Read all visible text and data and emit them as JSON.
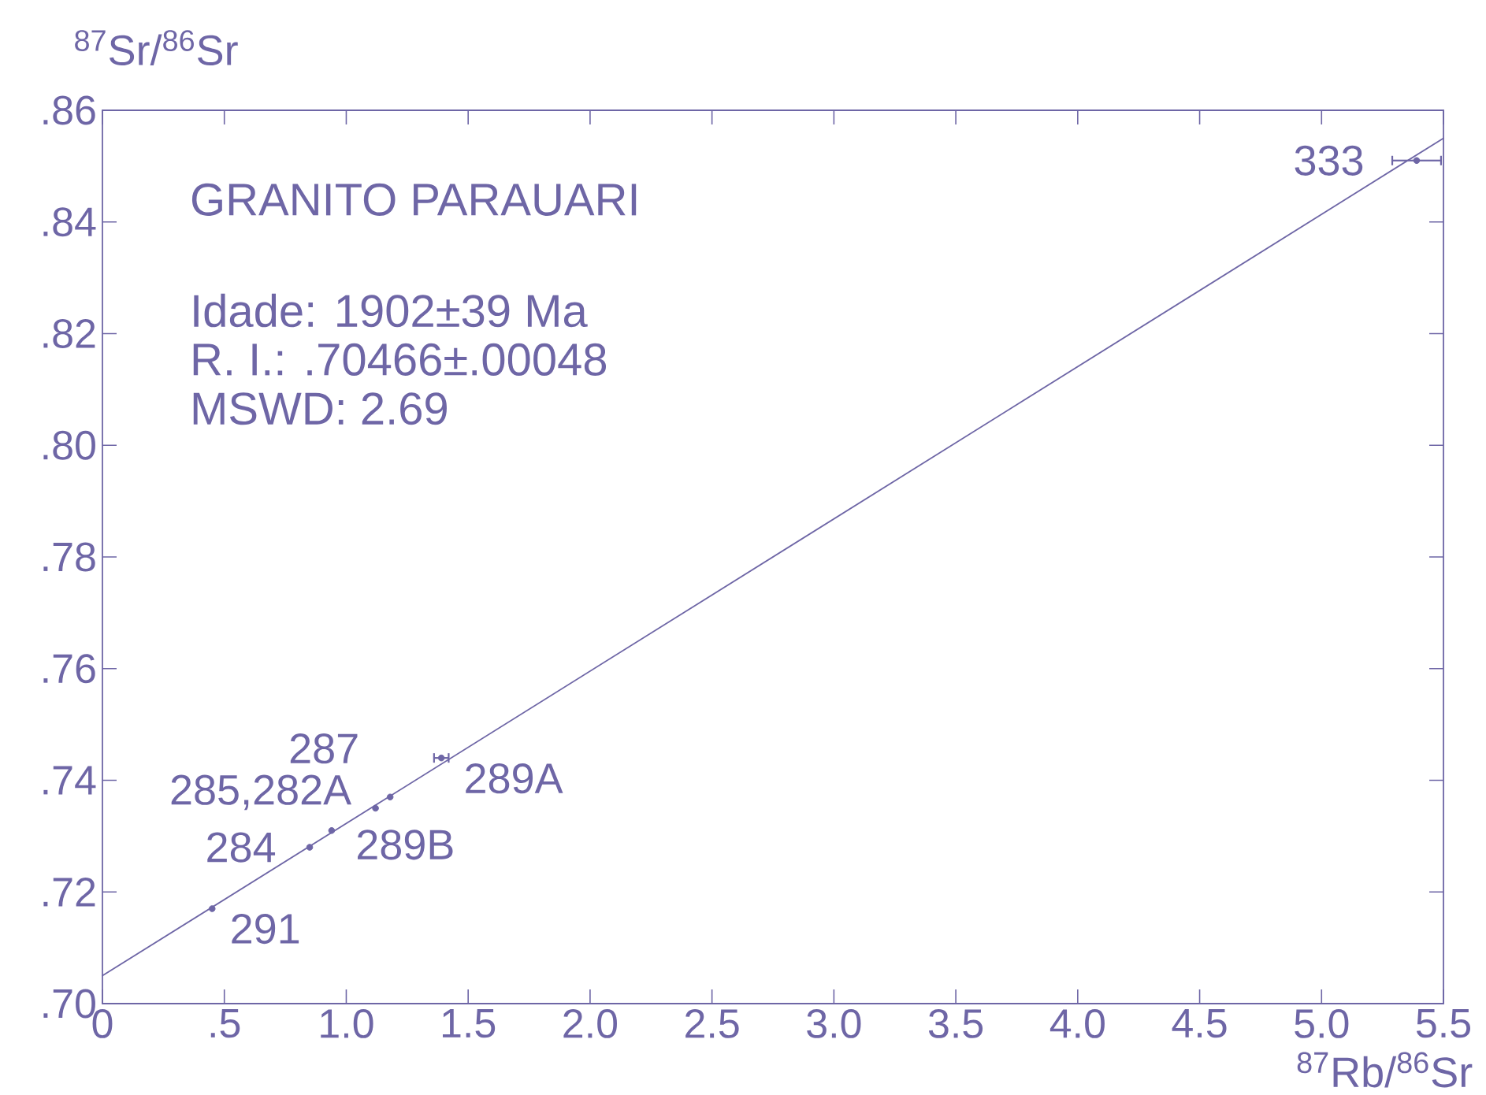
{
  "chart_data": {
    "type": "scatter",
    "title": "GRANITO PARAUARI",
    "xlabel": "$^{87}$Rb/$^{86}$Sr",
    "ylabel": "$^{87}$Sr/$^{86}$Sr",
    "annotations": [
      "Idade: 1902±39 Ma",
      "R. I.: .70466±.00048",
      "MSWD: 2.69",
      {
        "text": "291",
        "x": 0.45,
        "y": 0.717
      },
      {
        "text": "284",
        "x": 0.85,
        "y": 0.728
      },
      {
        "text": "289B",
        "x": 0.94,
        "y": 0.731
      },
      {
        "text": "285,282A",
        "x": 1.12,
        "y": 0.735
      },
      {
        "text": "287",
        "x": 1.18,
        "y": 0.737
      },
      {
        "text": "289A",
        "x": 1.39,
        "y": 0.744
      },
      {
        "text": "333",
        "x": 5.39,
        "y": 0.851
      }
    ],
    "xlim": [
      0,
      5.5
    ],
    "ylim": [
      0.7,
      0.86
    ],
    "xticks": [
      0,
      {
        "value": 0.5,
        "label": ".5"
      },
      {
        "value": 1.0,
        "label": "1.0"
      },
      1.5,
      {
        "value": 2.0,
        "label": "2.0"
      },
      2.5,
      {
        "value": 3.0,
        "label": "3.0"
      },
      3.5,
      {
        "value": 4.0,
        "label": "4.0"
      },
      4.5,
      {
        "value": 5.0,
        "label": "5.0"
      },
      5.5
    ],
    "yticks": [
      {
        "value": 0.7,
        "label": ".70"
      },
      {
        "value": 0.72,
        "label": ".72"
      },
      {
        "value": 0.74,
        "label": ".74"
      },
      {
        "value": 0.76,
        "label": ".76"
      },
      {
        "value": 0.78,
        "label": ".78"
      },
      {
        "value": 0.8,
        "label": ".80"
      },
      {
        "value": 0.82,
        "label": ".82"
      },
      {
        "value": 0.84,
        "label": ".84"
      },
      {
        "value": 0.86,
        "label": ".86"
      }
    ],
    "series": [
      {
        "color": "#6e66a6",
        "marker": "circle",
        "x": [
          0.45,
          0.85,
          0.94,
          1.12,
          1.18,
          1.39,
          5.39
        ],
        "values": [
          0.717,
          0.728,
          0.731,
          0.735,
          0.737,
          0.744,
          0.851
        ],
        "xerrors": [
          null,
          null,
          null,
          null,
          null,
          0.03,
          0.1
        ]
      },
      {
        "type": "line",
        "color": "#6e66a6",
        "marker": "none",
        "x": [
          0,
          5.5
        ],
        "values": [
          0.705,
          0.855
        ]
      }
    ]
  }
}
